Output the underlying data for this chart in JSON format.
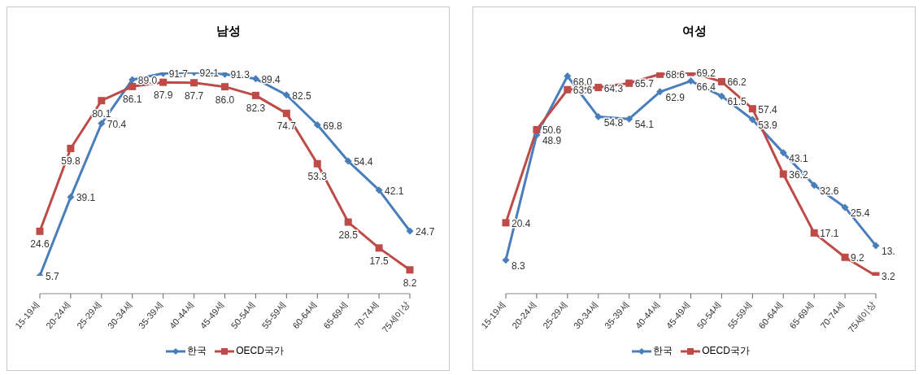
{
  "chart_data": [
    {
      "type": "line",
      "title": "남성",
      "categories": [
        "15-19세",
        "20-24세",
        "25-29세",
        "30-34세",
        "35-39세",
        "40-44세",
        "45-49세",
        "50-54세",
        "55-59세",
        "60-64세",
        "65-69세",
        "70-74세",
        "75세이상"
      ],
      "tick_labels": "x",
      "grid": false,
      "legend": "bottom",
      "series": [
        {
          "name": "한국",
          "color": "#4a7ebb",
          "marker": "diamond",
          "values": [
            5.7,
            39.1,
            70.4,
            89.0,
            91.7,
            92.1,
            91.3,
            89.4,
            82.5,
            69.8,
            54.4,
            42.1,
            24.7
          ],
          "value_labels": [
            "5.7",
            "39.1",
            "70.4",
            "89.0",
            "91.7",
            "92.1",
            "91.3",
            "89.4",
            "82.5",
            "69.8",
            "54.4",
            "42.1",
            "24.7"
          ]
        },
        {
          "name": "OECD국가",
          "color": "#be4b48",
          "marker": "square",
          "values": [
            24.6,
            59.8,
            80.1,
            86.1,
            87.9,
            87.7,
            86.0,
            82.3,
            74.7,
            53.3,
            28.5,
            17.5,
            8.2
          ],
          "value_labels": [
            "24.6",
            "59.8",
            "80.1",
            "86.1",
            "87.9",
            "87.7",
            "86.0",
            "82.3",
            "74.7",
            "53.3",
            "28.5",
            "17.5",
            "8.2"
          ]
        }
      ]
    },
    {
      "type": "line",
      "title": "여성",
      "categories": [
        "15-19세",
        "20-24세",
        "25-29세",
        "30-34세",
        "35-39세",
        "40-44세",
        "45-49세",
        "50-54세",
        "55-59세",
        "60-64세",
        "65-69세",
        "70-74세",
        "75세이상"
      ],
      "tick_labels": "x",
      "grid": false,
      "legend": "bottom",
      "series": [
        {
          "name": "한국",
          "color": "#4a7ebb",
          "marker": "diamond",
          "values": [
            8.3,
            48.9,
            68.0,
            54.8,
            54.1,
            62.9,
            66.4,
            61.5,
            53.9,
            43.1,
            32.6,
            25.4,
            13.0
          ],
          "value_labels": [
            "8.3",
            "48.9",
            "68.0",
            "54.8",
            "54.1",
            "62.9",
            "66.4",
            "61.5",
            "53.9",
            "43.1",
            "32.6",
            "25.4",
            "13."
          ]
        },
        {
          "name": "OECD국가",
          "color": "#be4b48",
          "marker": "square",
          "values": [
            20.4,
            50.6,
            63.6,
            64.3,
            65.7,
            68.6,
            69.2,
            66.2,
            57.4,
            36.2,
            17.1,
            9.2,
            3.2
          ],
          "value_labels": [
            "20.4",
            "50.6",
            "63.6",
            "64.3",
            "65.7",
            "68.6",
            "69.2",
            "66.2",
            "57.4",
            "36.2",
            "17.1",
            "9.2",
            "3.2"
          ]
        }
      ]
    }
  ]
}
